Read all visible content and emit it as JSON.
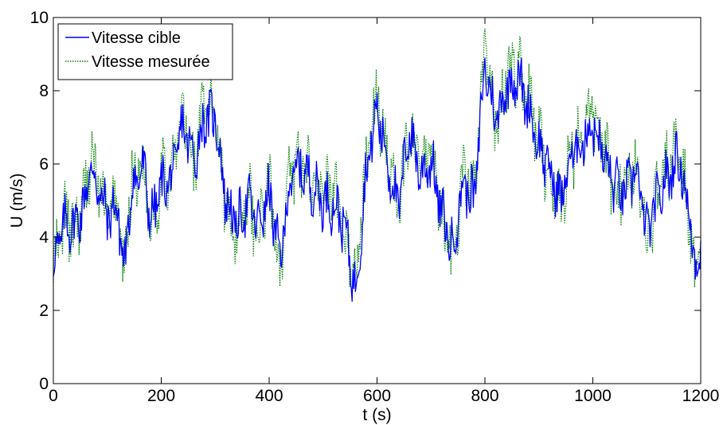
{
  "chart_data": {
    "type": "line",
    "title": "",
    "xlabel": "t (s)",
    "ylabel": "U (m/s)",
    "xlim": [
      0,
      1200
    ],
    "ylim": [
      0,
      10
    ],
    "xticks": [
      0,
      200,
      400,
      600,
      800,
      1000,
      1200
    ],
    "yticks": [
      0,
      2,
      4,
      6,
      8,
      10
    ],
    "xtick_labels": [
      "0",
      "200",
      "400",
      "600",
      "800",
      "1000",
      "1200"
    ],
    "ytick_labels": [
      "0",
      "2",
      "4",
      "6",
      "8",
      "10"
    ],
    "grid": false,
    "legend_position": "top-left",
    "x": [
      0,
      20,
      40,
      60,
      70,
      80,
      100,
      120,
      130,
      140,
      150,
      170,
      180,
      200,
      220,
      240,
      260,
      280,
      300,
      320,
      340,
      360,
      380,
      400,
      420,
      440,
      460,
      480,
      500,
      520,
      540,
      560,
      570,
      580,
      600,
      620,
      640,
      660,
      680,
      700,
      720,
      740,
      760,
      780,
      800,
      820,
      840,
      860,
      880,
      900,
      920,
      940,
      960,
      980,
      1000,
      1020,
      1040,
      1060,
      1080,
      1100,
      1120,
      1140,
      1160,
      1180,
      1190,
      1200
    ],
    "series": [
      {
        "name": "Vitesse cible",
        "color": "#0000ff",
        "style": "solid",
        "values": [
          3.2,
          4.4,
          4.3,
          5.1,
          6.0,
          5.4,
          4.6,
          4.8,
          3.0,
          4.6,
          5.6,
          5.8,
          4.4,
          5.4,
          5.6,
          7.1,
          6.1,
          7.2,
          7.3,
          5.0,
          4.3,
          5.0,
          4.3,
          5.2,
          3.4,
          5.6,
          5.9,
          5.4,
          5.0,
          4.9,
          4.3,
          2.5,
          4.1,
          5.8,
          7.5,
          6.0,
          4.8,
          7.0,
          5.7,
          6.1,
          4.6,
          3.7,
          5.5,
          5.0,
          8.7,
          7.2,
          8.1,
          8.4,
          7.6,
          6.5,
          5.8,
          5.0,
          6.2,
          6.6,
          7.1,
          6.2,
          5.4,
          5.2,
          5.9,
          4.1,
          5.0,
          5.7,
          6.2,
          4.5,
          3.0,
          3.9
        ]
      },
      {
        "name": "Vitesse mesurée",
        "color": "#008000",
        "style": "dotted",
        "values": [
          3.0,
          4.5,
          4.2,
          5.2,
          6.3,
          5.6,
          4.5,
          5.0,
          2.8,
          4.8,
          5.8,
          5.9,
          4.2,
          5.6,
          5.8,
          7.4,
          6.0,
          7.5,
          7.6,
          4.8,
          4.1,
          5.2,
          4.1,
          5.4,
          3.2,
          5.8,
          6.1,
          5.6,
          5.2,
          5.1,
          4.1,
          2.7,
          4.3,
          6.0,
          7.8,
          6.2,
          4.6,
          7.2,
          5.9,
          6.3,
          4.4,
          3.5,
          5.7,
          5.2,
          9.1,
          7.0,
          8.4,
          8.7,
          7.8,
          6.7,
          5.6,
          4.8,
          6.4,
          6.8,
          7.4,
          6.4,
          5.2,
          5.4,
          6.1,
          3.9,
          5.2,
          5.9,
          6.5,
          4.3,
          2.8,
          3.7
        ]
      }
    ]
  }
}
